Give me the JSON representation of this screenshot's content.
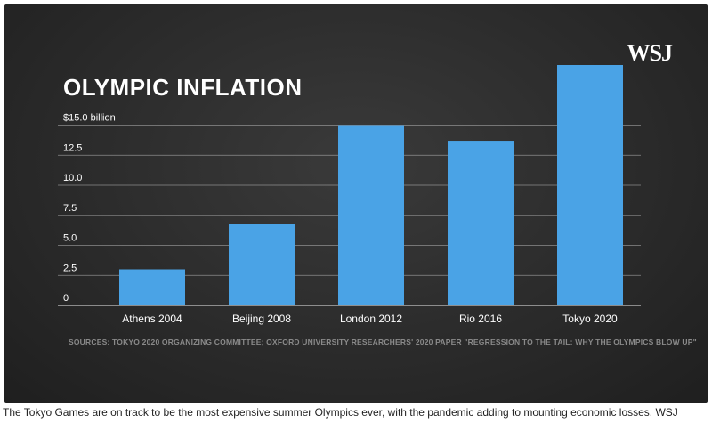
{
  "logo_text": "WSJ",
  "caption": "The Tokyo Games are on track to be the most expensive summer Olympics ever, with the pandemic adding to mounting economic losses. WSJ",
  "colors": {
    "bar": "#4aa3e6",
    "background": "#2e2e2e",
    "grid": "#d9d9d9"
  },
  "chart_data": {
    "type": "bar",
    "title": "OLYMPIC INFLATION",
    "categories": [
      "Athens 2004",
      "Beijing 2008",
      "London 2012",
      "Rio 2016",
      "Tokyo 2020"
    ],
    "values": [
      3.0,
      6.8,
      15.0,
      13.7,
      20.0
    ],
    "y_tick_values": [
      0,
      2.5,
      5.0,
      7.5,
      10.0,
      12.5,
      15.0
    ],
    "y_tick_labels": [
      "0",
      "2.5",
      "5.0",
      "7.5",
      "10.0",
      "12.5",
      "$15.0 billion"
    ],
    "ylim": [
      0,
      20
    ],
    "grid": true,
    "legend": "none",
    "source": "SOURCES: TOKYO 2020 ORGANIZING COMMITTEE; OXFORD UNIVERSITY RESEARCHERS' 2020 PAPER \"REGRESSION TO THE TAIL: WHY THE OLYMPICS BLOW UP\""
  }
}
